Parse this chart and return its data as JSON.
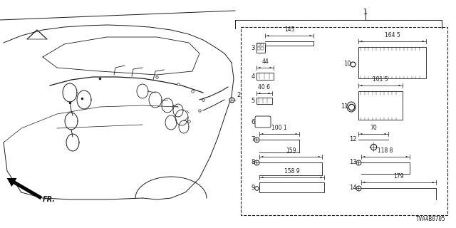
{
  "diagram_code": "TVA4B0705",
  "bg_color": "#ffffff",
  "lc": "#1a1a1a",
  "figsize": [
    6.4,
    3.2
  ],
  "dpi": 100,
  "ref1_label": "1",
  "ref2_label": "2",
  "fr_label": "FR.",
  "parts_left": [
    {
      "num": "3",
      "dim": "145"
    },
    {
      "num": "4",
      "dim": "44"
    },
    {
      "num": "5",
      "dim": "40 6"
    },
    {
      "num": "6",
      "dim": ""
    },
    {
      "num": "7",
      "dim": "100 1"
    },
    {
      "num": "8",
      "dim": "159"
    },
    {
      "num": "9",
      "dim": "158 9"
    }
  ],
  "parts_right": [
    {
      "num": "10",
      "dim": "164 5"
    },
    {
      "num": "11",
      "dim": "101 5"
    },
    {
      "num": "12",
      "dim": "70"
    },
    {
      "num": "13",
      "dim": "118 8"
    },
    {
      "num": "14",
      "dim": "179"
    }
  ]
}
